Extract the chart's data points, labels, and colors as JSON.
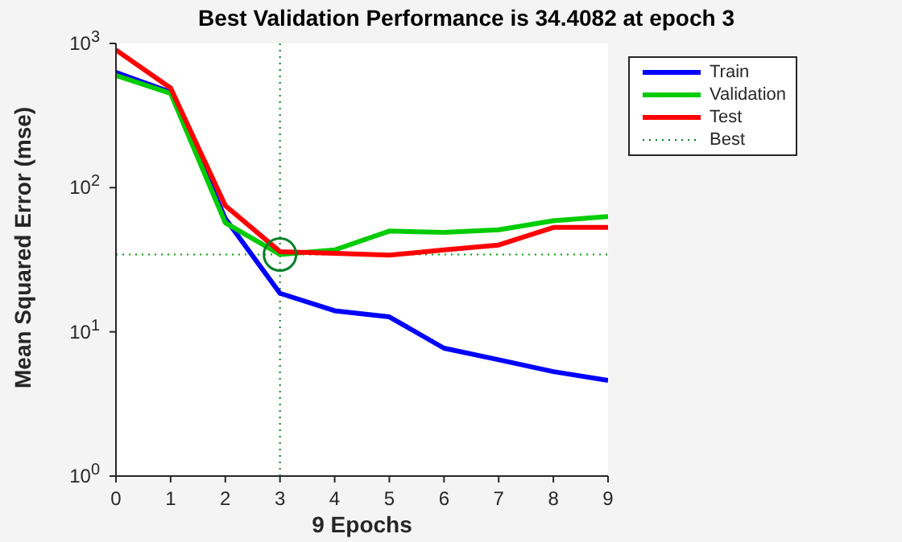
{
  "chart_data": {
    "type": "line",
    "title": "Best Validation Performance is 34.4082 at epoch 3",
    "xlabel": "9 Epochs",
    "ylabel": "Mean Squared Error  (mse)",
    "x": [
      0,
      1,
      2,
      3,
      4,
      5,
      6,
      7,
      8,
      9
    ],
    "series": [
      {
        "name": "Train",
        "color": "#0000ff",
        "values": [
          630,
          460,
          61,
          18.5,
          14,
          12.7,
          7.7,
          6.4,
          5.3,
          4.6
        ]
      },
      {
        "name": "Validation",
        "color": "#00cc00",
        "values": [
          600,
          450,
          57,
          34.4082,
          37,
          50,
          49,
          51,
          59,
          63
        ]
      },
      {
        "name": "Test",
        "color": "#ff0000",
        "values": [
          900,
          490,
          75,
          36,
          35,
          34,
          37,
          40,
          53,
          53
        ]
      },
      {
        "name": "Best",
        "type": "scatter",
        "color": "#008026",
        "marker": "circle",
        "line_style": "dotted",
        "x": [
          3
        ],
        "values": [
          34.4082
        ]
      }
    ],
    "ref_lines": [
      {
        "axis": "x",
        "value": 3,
        "label": null,
        "color": "#008026",
        "line_style": "dotted"
      },
      {
        "axis": "y",
        "value": 34.4082,
        "label": null,
        "color": "#00a000",
        "line_style": "dotted"
      }
    ],
    "log": "y",
    "xlim": [
      0,
      9
    ],
    "xticks": [
      0,
      1,
      2,
      3,
      4,
      5,
      6,
      7,
      8,
      9
    ],
    "ylim": [
      1,
      1000
    ],
    "yticks": [
      {
        "value": 1,
        "label": "10$^{0}$"
      },
      {
        "value": 10,
        "label": "10$^{1}$"
      },
      {
        "value": 100,
        "label": "10$^{2}$"
      },
      {
        "value": 1000,
        "label": "10$^{3}$"
      }
    ],
    "legend": "top right",
    "grid": false,
    "marker": "none",
    "line_style": "solid"
  }
}
